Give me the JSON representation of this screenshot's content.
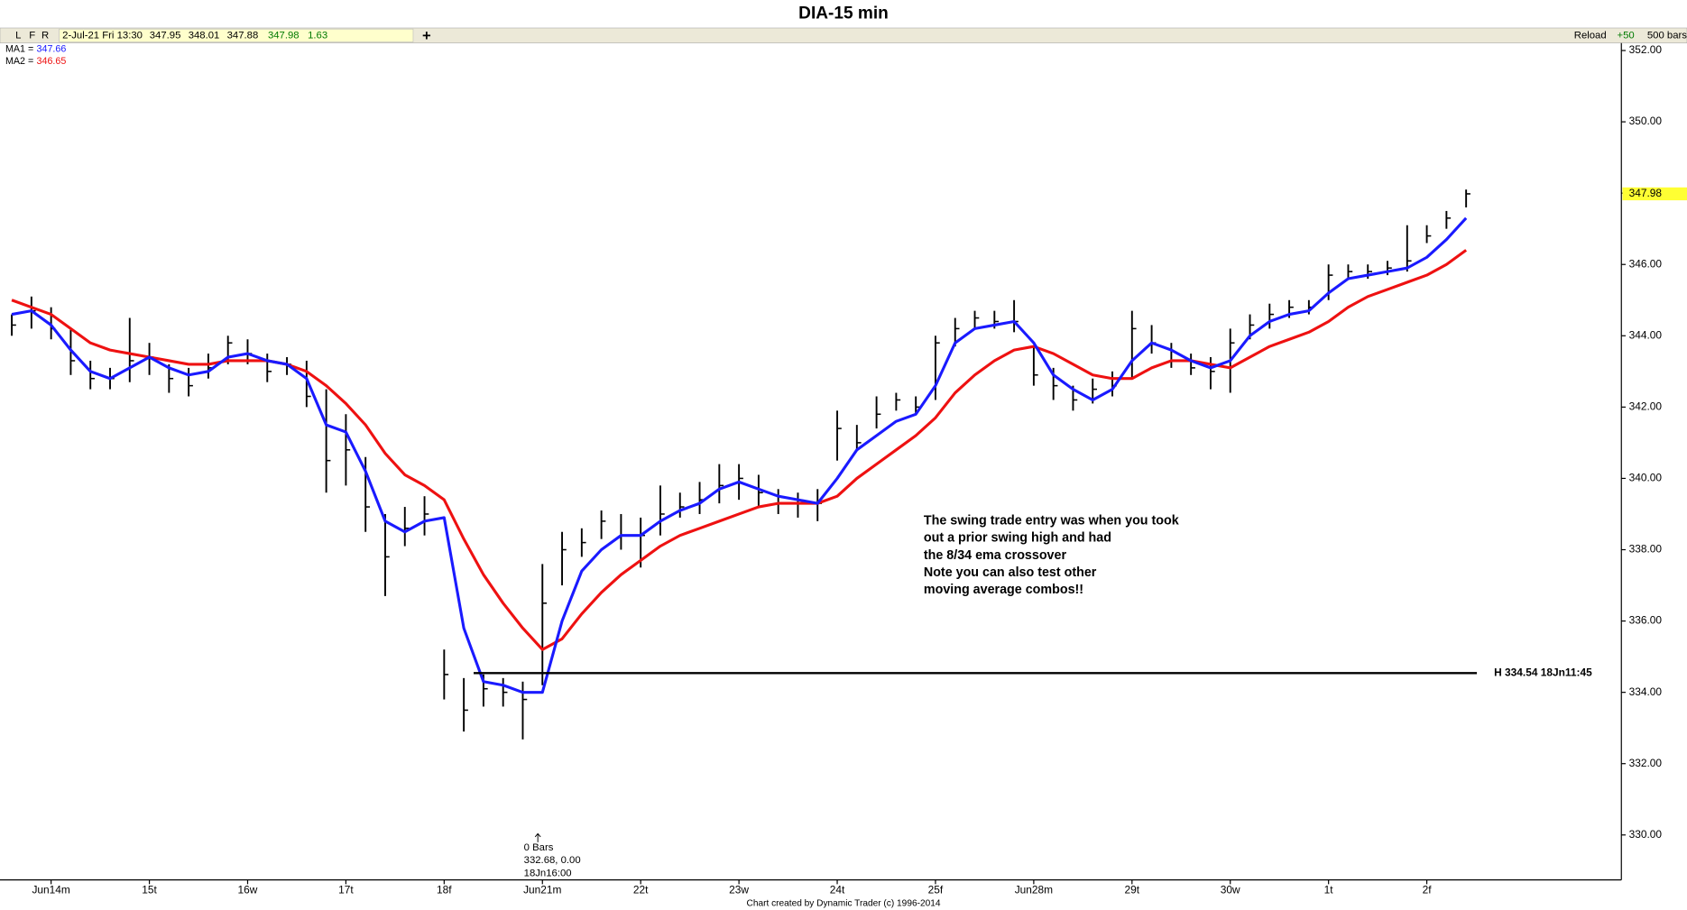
{
  "header": {
    "buttons": [
      "L",
      "F",
      "R"
    ],
    "datetime": "2-Jul-21 Fri 13:30",
    "open": 347.95,
    "high": 348.01,
    "low": 347.88,
    "close": 347.98,
    "change": 1.63,
    "reload": "Reload",
    "increment": "+50",
    "bars": "500 bars"
  },
  "footer": "Chart created by Dynamic Trader  (c)  1996-2014",
  "chart_data": {
    "type": "ohlc",
    "title": "DIA-15 min",
    "x": [
      0,
      1,
      2,
      3,
      4,
      5,
      6,
      7,
      8,
      9,
      10,
      11,
      12,
      13,
      14,
      15,
      16,
      17,
      18,
      19,
      20,
      21,
      22,
      23,
      24,
      25,
      26,
      27,
      28,
      29,
      30,
      31,
      32,
      33,
      34,
      35,
      36,
      37,
      38,
      39,
      40,
      41,
      42,
      43,
      44,
      45,
      46,
      47,
      48,
      49,
      50,
      51,
      52,
      53,
      54,
      55,
      56,
      57,
      58,
      59,
      60,
      61,
      62,
      63,
      64,
      65,
      66,
      67,
      68,
      69,
      70,
      71,
      72,
      73,
      74
    ],
    "high": [
      344.6,
      345.1,
      344.8,
      344.2,
      343.3,
      343.1,
      344.5,
      343.8,
      343.2,
      343.1,
      343.5,
      344.0,
      343.9,
      343.5,
      343.4,
      343.3,
      342.5,
      341.8,
      340.6,
      339.0,
      339.2,
      339.5,
      335.2,
      334.4,
      334.5,
      334.4,
      334.3,
      337.6,
      338.5,
      338.6,
      339.1,
      339.0,
      338.9,
      339.8,
      339.6,
      339.9,
      340.4,
      340.4,
      340.1,
      339.7,
      339.6,
      339.7,
      341.9,
      341.5,
      342.3,
      342.4,
      342.3,
      344.0,
      344.5,
      344.7,
      344.7,
      345.0,
      343.7,
      343.1,
      342.6,
      342.8,
      343.0,
      344.7,
      344.3,
      343.8,
      343.5,
      343.4,
      344.2,
      344.6,
      344.9,
      345.0,
      345.0,
      346.0,
      346.0,
      346.0,
      346.1,
      347.1,
      347.1,
      347.5,
      348.1
    ],
    "low": [
      344.0,
      344.2,
      343.9,
      342.9,
      342.5,
      342.5,
      342.7,
      342.9,
      342.4,
      342.3,
      342.8,
      343.2,
      343.2,
      342.7,
      342.9,
      342.0,
      339.6,
      339.8,
      338.5,
      336.7,
      338.1,
      338.4,
      333.8,
      332.9,
      333.6,
      333.6,
      332.68,
      334.2,
      337.0,
      337.8,
      338.3,
      338.0,
      337.5,
      338.4,
      338.9,
      339.0,
      339.3,
      339.4,
      339.2,
      339.0,
      338.9,
      338.8,
      340.5,
      340.8,
      341.4,
      341.9,
      341.8,
      342.2,
      343.7,
      344.2,
      344.2,
      344.1,
      342.6,
      342.2,
      341.9,
      342.1,
      342.3,
      342.8,
      343.5,
      343.1,
      342.9,
      342.5,
      342.4,
      343.9,
      344.2,
      344.5,
      344.6,
      345.0,
      345.6,
      345.6,
      345.7,
      345.8,
      346.6,
      347.0,
      347.6
    ],
    "close": [
      344.3,
      344.7,
      344.2,
      343.3,
      342.8,
      342.8,
      343.3,
      343.4,
      342.8,
      342.6,
      343.1,
      343.8,
      343.5,
      343.0,
      343.2,
      342.3,
      340.5,
      340.8,
      339.2,
      337.8,
      338.6,
      339.0,
      334.5,
      333.5,
      334.1,
      334.0,
      333.8,
      336.5,
      338.0,
      338.2,
      338.8,
      338.4,
      338.4,
      339.0,
      339.2,
      339.4,
      339.8,
      340.0,
      339.6,
      339.3,
      339.3,
      339.3,
      341.4,
      341.0,
      341.8,
      342.2,
      342.0,
      343.8,
      344.2,
      344.5,
      344.4,
      344.4,
      342.9,
      342.6,
      342.2,
      342.5,
      342.6,
      344.2,
      343.8,
      343.3,
      343.1,
      343.0,
      343.8,
      344.3,
      344.6,
      344.8,
      344.8,
      345.7,
      345.8,
      345.8,
      345.9,
      346.1,
      346.8,
      347.3,
      347.98
    ],
    "bar_color": "#000000",
    "series": [
      {
        "name": "MA1 =",
        "last": 347.66,
        "color": "#1a1aff",
        "values": [
          344.6,
          344.7,
          344.3,
          343.6,
          343.0,
          342.8,
          343.1,
          343.4,
          343.1,
          342.9,
          343.0,
          343.4,
          343.5,
          343.3,
          343.2,
          342.8,
          341.5,
          341.3,
          340.2,
          338.8,
          338.5,
          338.8,
          338.9,
          335.8,
          334.3,
          334.2,
          334.0,
          334.0,
          336.0,
          337.4,
          338.0,
          338.4,
          338.4,
          338.8,
          339.1,
          339.3,
          339.7,
          339.9,
          339.7,
          339.5,
          339.4,
          339.3,
          340.0,
          340.8,
          341.2,
          341.6,
          341.8,
          342.6,
          343.8,
          344.2,
          344.3,
          344.4,
          343.8,
          342.9,
          342.5,
          342.2,
          342.5,
          343.3,
          343.8,
          343.6,
          343.3,
          343.1,
          343.3,
          344.0,
          344.4,
          344.6,
          344.7,
          345.2,
          345.6,
          345.7,
          345.8,
          345.9,
          346.2,
          346.7,
          347.3
        ]
      },
      {
        "name": "MA2 =",
        "last": 346.65,
        "color": "#ee1111",
        "values": [
          345.0,
          344.8,
          344.6,
          344.2,
          343.8,
          343.6,
          343.5,
          343.4,
          343.3,
          343.2,
          343.2,
          343.3,
          343.3,
          343.3,
          343.2,
          343.0,
          342.6,
          342.1,
          341.5,
          340.7,
          340.1,
          339.8,
          339.4,
          338.3,
          337.3,
          336.5,
          335.8,
          335.2,
          335.5,
          336.2,
          336.8,
          337.3,
          337.7,
          338.1,
          338.4,
          338.6,
          338.8,
          339.0,
          339.2,
          339.3,
          339.3,
          339.3,
          339.5,
          340.0,
          340.4,
          340.8,
          341.2,
          341.7,
          342.4,
          342.9,
          343.3,
          343.6,
          343.7,
          343.5,
          343.2,
          342.9,
          342.8,
          342.8,
          343.1,
          343.3,
          343.3,
          343.2,
          343.1,
          343.4,
          343.7,
          343.9,
          344.1,
          344.4,
          344.8,
          345.1,
          345.3,
          345.5,
          345.7,
          346.0,
          346.4
        ]
      }
    ],
    "xlim": [
      -0.6,
      81.9
    ],
    "ylim": [
      328.74,
      352.21
    ],
    "xticks": [
      {
        "value": 2,
        "label": "Jun14m"
      },
      {
        "value": 7,
        "label": "15t"
      },
      {
        "value": 12,
        "label": "16w"
      },
      {
        "value": 17,
        "label": "17t"
      },
      {
        "value": 22,
        "label": "18f"
      },
      {
        "value": 27,
        "label": "Jun21m"
      },
      {
        "value": 32,
        "label": "22t"
      },
      {
        "value": 37,
        "label": "23w"
      },
      {
        "value": 42,
        "label": "24t"
      },
      {
        "value": 47,
        "label": "25f"
      },
      {
        "value": 52,
        "label": "Jun28m"
      },
      {
        "value": 57,
        "label": "29t"
      },
      {
        "value": 62,
        "label": "30w"
      },
      {
        "value": 67,
        "label": "1t"
      },
      {
        "value": 72,
        "label": "2f"
      }
    ],
    "yticks": [
      {
        "value": 330,
        "label": "330.00"
      },
      {
        "value": 332,
        "label": "332.00"
      },
      {
        "value": 334,
        "label": "334.00"
      },
      {
        "value": 336,
        "label": "336.00"
      },
      {
        "value": 338,
        "label": "338.00"
      },
      {
        "value": 340,
        "label": "340.00"
      },
      {
        "value": 342,
        "label": "342.00"
      },
      {
        "value": 344,
        "label": "344.00"
      },
      {
        "value": 346,
        "label": "346.00"
      },
      {
        "value": 348,
        "label": "348.00"
      },
      {
        "value": 350,
        "label": "350.00"
      },
      {
        "value": 352,
        "label": "352.00"
      }
    ],
    "grid": false,
    "price_tag": 347.98,
    "price_tag_color": "#ffff33",
    "hline": {
      "value": 334.54,
      "from_x": 23.5,
      "to_x": 74,
      "label": "H 334.54 18Jn11:45"
    },
    "marker": {
      "x": 26,
      "lines": [
        "0 Bars",
        "332.68, 0.00",
        "18Jn16:00"
      ]
    },
    "note": {
      "x": 46.4,
      "y": 338.8,
      "lines": [
        "The swing trade entry was when you took",
        "out a prior swing high and had",
        "the 8/34 ema crossover",
        "Note you can also test other",
        "moving average combos!!"
      ]
    }
  }
}
